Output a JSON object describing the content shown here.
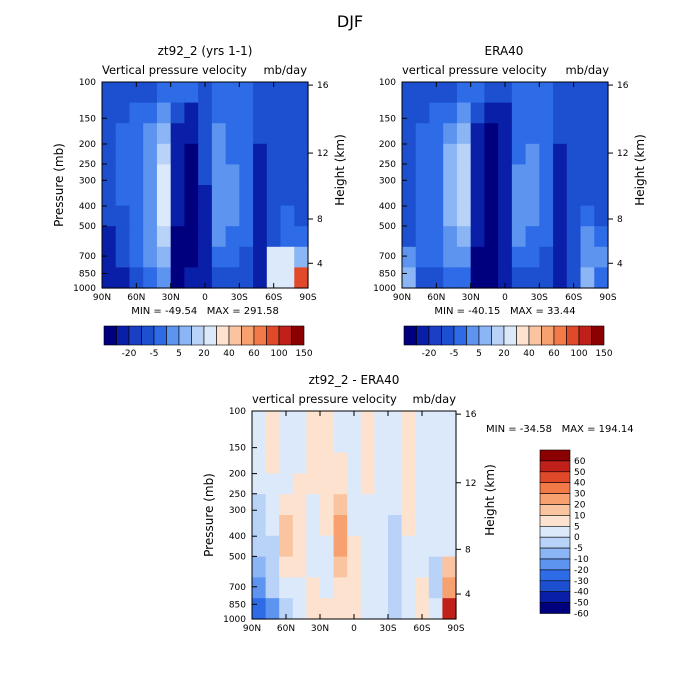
{
  "figure": {
    "title": "DJF"
  },
  "chart_data": [
    {
      "type": "heatmap",
      "title": "zt92_2 (yrs 1-1)",
      "subtitle_left": "Vertical pressure velocity",
      "subtitle_right": "mb/day",
      "xlabel": "",
      "ylabel": "Pressure (mb)",
      "ylabel_right": "Height (km)",
      "x_ticks": [
        "90N",
        "60N",
        "30N",
        "0",
        "30S",
        "60S",
        "90S"
      ],
      "y_ticks": [
        "100",
        "150",
        "200",
        "250",
        "300",
        "400",
        "500",
        "700",
        "850",
        "1000"
      ],
      "y_ticks_right": [
        "16",
        "12",
        "8",
        "4"
      ],
      "stats_text": "MIN = -49.54   MAX = 291.58",
      "colorbar_labels": [
        "-20",
        "-5",
        "5",
        "20",
        "40",
        "60",
        "100",
        "150"
      ],
      "colorbar_orientation": "horizontal",
      "field": [
        [
          2,
          2,
          2,
          2,
          3,
          3,
          3,
          2,
          3,
          3,
          3,
          2,
          2,
          2,
          2
        ],
        [
          2,
          2,
          3,
          3,
          4,
          2,
          1,
          2,
          3,
          3,
          3,
          2,
          2,
          2,
          2
        ],
        [
          2,
          3,
          3,
          4,
          5,
          1,
          1,
          2,
          4,
          3,
          3,
          2,
          2,
          2,
          2
        ],
        [
          2,
          3,
          3,
          4,
          6,
          1,
          0,
          2,
          4,
          3,
          3,
          1,
          2,
          2,
          2
        ],
        [
          2,
          3,
          3,
          4,
          7,
          1,
          0,
          2,
          4,
          4,
          3,
          1,
          2,
          2,
          2
        ],
        [
          2,
          3,
          3,
          4,
          7,
          1,
          0,
          1,
          4,
          4,
          3,
          1,
          2,
          2,
          2
        ],
        [
          2,
          2,
          3,
          4,
          7,
          1,
          0,
          1,
          4,
          4,
          3,
          1,
          2,
          3,
          2
        ],
        [
          1,
          2,
          3,
          4,
          6,
          0,
          0,
          1,
          4,
          3,
          3,
          1,
          2,
          3,
          3
        ],
        [
          1,
          2,
          3,
          4,
          5,
          0,
          0,
          1,
          3,
          3,
          2,
          1,
          7,
          7,
          5
        ],
        [
          1,
          1,
          2,
          3,
          4,
          0,
          1,
          1,
          2,
          2,
          2,
          1,
          7,
          7,
          12
        ]
      ]
    },
    {
      "type": "heatmap",
      "title": "ERA40",
      "subtitle_left": "vertical pressure velocity",
      "subtitle_right": "mb/day",
      "xlabel": "",
      "ylabel": "",
      "ylabel_right": "Height (km)",
      "x_ticks": [
        "90N",
        "60N",
        "30N",
        "0",
        "30S",
        "60S",
        "90S"
      ],
      "y_ticks": [
        "100",
        "150",
        "200",
        "250",
        "300",
        "400",
        "500",
        "700",
        "850",
        "1000"
      ],
      "y_ticks_right": [
        "16",
        "12",
        "8",
        "4"
      ],
      "stats_text": "MIN = -40.15   MAX = 33.44",
      "colorbar_labels": [
        "-20",
        "-5",
        "5",
        "20",
        "40",
        "60",
        "100",
        "150"
      ],
      "colorbar_orientation": "horizontal",
      "field": [
        [
          2,
          2,
          2,
          2,
          3,
          3,
          2,
          2,
          3,
          3,
          3,
          2,
          2,
          2,
          2
        ],
        [
          2,
          2,
          3,
          3,
          4,
          2,
          1,
          1,
          3,
          3,
          3,
          2,
          2,
          2,
          2
        ],
        [
          2,
          3,
          3,
          4,
          5,
          1,
          0,
          1,
          3,
          3,
          3,
          2,
          2,
          2,
          2
        ],
        [
          2,
          3,
          3,
          5,
          6,
          1,
          0,
          1,
          3,
          4,
          3,
          1,
          2,
          2,
          2
        ],
        [
          2,
          3,
          3,
          5,
          6,
          1,
          0,
          1,
          4,
          4,
          3,
          1,
          2,
          2,
          2
        ],
        [
          2,
          3,
          3,
          5,
          6,
          1,
          0,
          1,
          4,
          4,
          3,
          1,
          2,
          2,
          2
        ],
        [
          2,
          3,
          3,
          5,
          6,
          1,
          0,
          1,
          4,
          4,
          3,
          1,
          2,
          3,
          2
        ],
        [
          2,
          3,
          3,
          4,
          5,
          1,
          0,
          1,
          4,
          3,
          3,
          1,
          2,
          4,
          3
        ],
        [
          4,
          3,
          3,
          4,
          4,
          0,
          0,
          1,
          3,
          3,
          2,
          1,
          2,
          4,
          4
        ],
        [
          5,
          2,
          2,
          3,
          3,
          0,
          0,
          1,
          2,
          2,
          2,
          1,
          2,
          5,
          3
        ]
      ]
    },
    {
      "type": "heatmap",
      "title": "zt92_2 - ERA40",
      "subtitle_left": "vertical pressure velocity",
      "subtitle_right": "mb/day",
      "xlabel": "",
      "ylabel": "Pressure (mb)",
      "ylabel_right": "Height (km)",
      "x_ticks": [
        "90N",
        "60N",
        "30N",
        "0",
        "30S",
        "60S",
        "90S"
      ],
      "y_ticks": [
        "100",
        "150",
        "200",
        "250",
        "300",
        "400",
        "500",
        "700",
        "850",
        "1000"
      ],
      "y_ticks_right": [
        "16",
        "12",
        "8",
        "4"
      ],
      "stats_text": "MIN = -34.58   MAX = 194.14",
      "colorbar_labels": [
        "60",
        "50",
        "40",
        "30",
        "20",
        "10",
        "5",
        "0",
        "-5",
        "-10",
        "-20",
        "-30",
        "-40",
        "-50",
        "-60"
      ],
      "colorbar_orientation": "vertical",
      "field": [
        [
          7,
          8,
          7,
          7,
          8,
          8,
          7,
          7,
          8,
          7,
          7,
          8,
          7,
          7,
          7
        ],
        [
          7,
          8,
          7,
          7,
          8,
          8,
          7,
          7,
          8,
          7,
          7,
          8,
          7,
          7,
          7
        ],
        [
          7,
          8,
          7,
          7,
          8,
          8,
          8,
          7,
          8,
          7,
          7,
          8,
          7,
          7,
          7
        ],
        [
          7,
          7,
          7,
          8,
          8,
          8,
          8,
          7,
          8,
          7,
          7,
          8,
          7,
          7,
          7
        ],
        [
          6,
          7,
          8,
          8,
          7,
          8,
          9,
          7,
          7,
          7,
          7,
          8,
          7,
          7,
          7
        ],
        [
          6,
          7,
          9,
          8,
          7,
          8,
          10,
          7,
          7,
          7,
          6,
          8,
          7,
          7,
          7
        ],
        [
          6,
          6,
          9,
          8,
          7,
          7,
          10,
          8,
          7,
          7,
          6,
          7,
          7,
          7,
          7
        ],
        [
          5,
          6,
          8,
          8,
          7,
          7,
          9,
          8,
          7,
          7,
          6,
          7,
          7,
          6,
          9
        ],
        [
          4,
          6,
          7,
          7,
          8,
          7,
          8,
          8,
          7,
          7,
          6,
          7,
          8,
          6,
          10
        ],
        [
          3,
          4,
          6,
          7,
          8,
          8,
          8,
          8,
          7,
          7,
          6,
          7,
          8,
          7,
          13
        ]
      ]
    }
  ],
  "colormaps": {
    "field_colors": [
      "#00007f",
      "#0a1fa8",
      "#1d4fd1",
      "#2e6be6",
      "#5c94ef",
      "#8bb5f4",
      "#b8d2f8",
      "#dce9fb",
      "#fde3cf",
      "#fbc4a0",
      "#f7a070",
      "#f27a48",
      "#e04a2a",
      "#c0201a",
      "#8b0000"
    ],
    "top_colorbar_colors": [
      "#00007f",
      "#0a1fa8",
      "#1a3fc4",
      "#1d4fd1",
      "#2e6be6",
      "#5c94ef",
      "#8bb5f4",
      "#b8d2f8",
      "#dce9fb",
      "#fde3cf",
      "#fbc4a0",
      "#f7a070",
      "#f27a48",
      "#e04a2a",
      "#c0201a",
      "#8b0000"
    ],
    "diff_colorbar_colors": [
      "#8b0000",
      "#c0201a",
      "#e04a2a",
      "#f27a48",
      "#f7a070",
      "#fbc4a0",
      "#fde3cf",
      "#dce9fb",
      "#b8d2f8",
      "#8bb5f4",
      "#5c94ef",
      "#2e6be6",
      "#1d4fd1",
      "#0a1fa8",
      "#00007f"
    ]
  }
}
